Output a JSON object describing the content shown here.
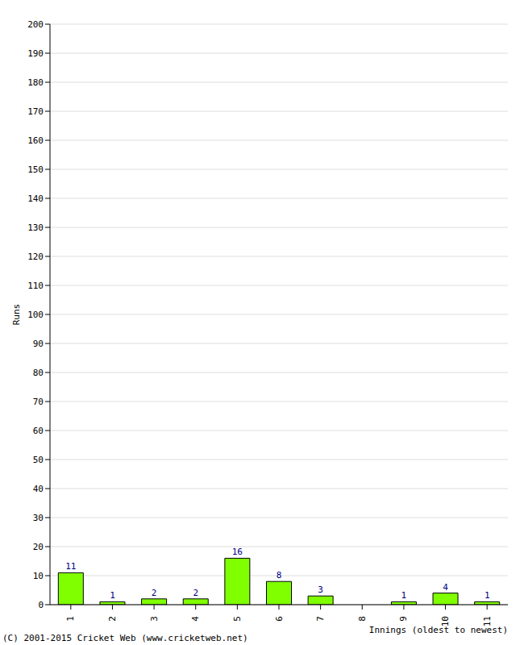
{
  "chart_data": {
    "type": "bar",
    "categories": [
      "1",
      "2",
      "3",
      "4",
      "5",
      "6",
      "7",
      "8",
      "9",
      "10",
      "11"
    ],
    "values": [
      11,
      1,
      2,
      2,
      16,
      8,
      3,
      0,
      1,
      4,
      1
    ],
    "color": "#80ff00",
    "ylim": [
      0,
      200
    ],
    "yticks": [
      0,
      10,
      20,
      30,
      40,
      50,
      60,
      70,
      80,
      90,
      100,
      110,
      120,
      130,
      140,
      150,
      160,
      170,
      180,
      190,
      200
    ],
    "grid": true,
    "data_labels": true,
    "y_label": "Runs",
    "x_label": "Innings (oldest to newest)",
    "annotation": "(C) 2001-2015 Cricket Web (www.cricketweb.net)"
  }
}
